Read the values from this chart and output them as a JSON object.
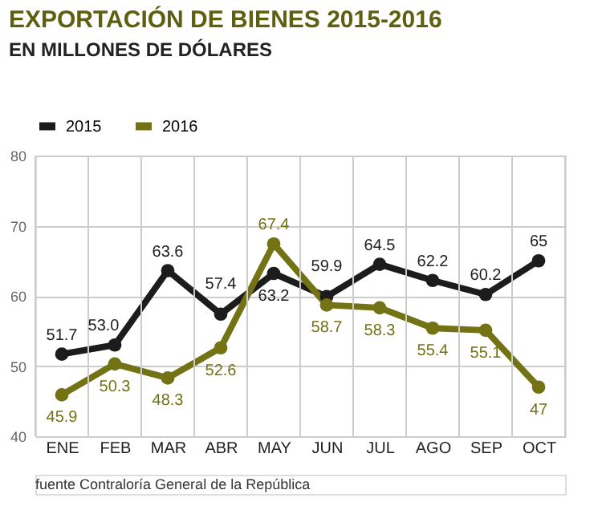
{
  "chart_data": {
    "type": "line",
    "title": "EXPORTACIÓN DE BIENES 2015-2016",
    "subtitle": "EN MILLONES DE DÓLARES",
    "categories": [
      "ENE",
      "FEB",
      "MAR",
      "ABR",
      "MAY",
      "JUN",
      "JUL",
      "AGO",
      "SEP",
      "OCT"
    ],
    "series": [
      {
        "name": "2015",
        "color": "#1c1c1c",
        "values": [
          51.7,
          53.0,
          63.6,
          57.4,
          63.2,
          59.9,
          64.5,
          62.2,
          60.2,
          65
        ],
        "value_labels": [
          "51.7",
          "53.0",
          "63.6",
          "57.4",
          "63.2",
          "59.9",
          "64.5",
          "62.2",
          "60.2",
          "65"
        ]
      },
      {
        "name": "2016",
        "color": "#737316",
        "values": [
          45.9,
          50.3,
          48.3,
          52.6,
          67.4,
          58.7,
          58.3,
          55.4,
          55.1,
          47
        ],
        "value_labels": [
          "45.9",
          "50.3",
          "48.3",
          "52.6",
          "67.4",
          "58.7",
          "58.3",
          "55.4",
          "55.1",
          "47"
        ]
      }
    ],
    "ylim": [
      40,
      80
    ],
    "yticks": [
      40,
      50,
      60,
      70,
      80
    ],
    "grid": true,
    "legend": "top left",
    "marker": "circle",
    "line_style": "solid",
    "annotations": [
      "fuente Contraloría General de la República"
    ]
  }
}
